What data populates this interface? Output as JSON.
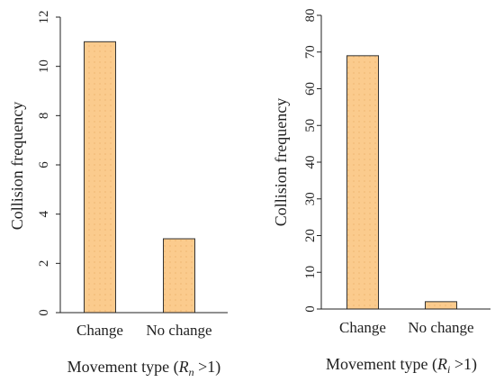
{
  "colors": {
    "bar_fill": "#FBCB8D",
    "bar_stroke": "#333333",
    "axis": "#222222"
  },
  "chart_data": [
    {
      "type": "bar",
      "title": "",
      "categories": [
        "Change",
        "No change"
      ],
      "values": [
        11,
        3
      ],
      "ylabel": "Collision frequency",
      "xlabel_prefix": "Movement type (",
      "xlabel_math": "R",
      "xlabel_sub": "n",
      "xlabel_suffix": " >1)",
      "ylim": [
        0,
        12
      ],
      "yticks": [
        0,
        2,
        4,
        6,
        8,
        10,
        12
      ]
    },
    {
      "type": "bar",
      "title": "",
      "categories": [
        "Change",
        "No change"
      ],
      "values": [
        69,
        2
      ],
      "ylabel": "Collision frequency",
      "xlabel_prefix": "Movement type (",
      "xlabel_math": "R",
      "xlabel_sub": "i",
      "xlabel_suffix": " >1)",
      "ylim": [
        0,
        80
      ],
      "yticks": [
        0,
        10,
        20,
        30,
        40,
        50,
        60,
        70,
        80
      ]
    }
  ]
}
